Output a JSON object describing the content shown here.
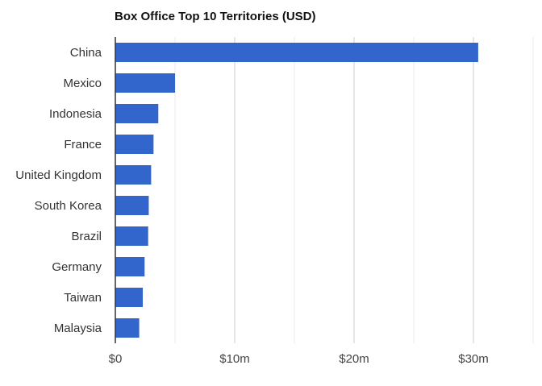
{
  "chart_data": {
    "type": "bar",
    "orientation": "horizontal",
    "title": "Box Office Top 10 Territories (USD)",
    "xlabel": "",
    "ylabel": "",
    "categories": [
      "China",
      "Mexico",
      "Indonesia",
      "France",
      "United Kingdom",
      "South Korea",
      "Brazil",
      "Germany",
      "Taiwan",
      "Malaysia"
    ],
    "values": [
      30.4,
      5.0,
      3.6,
      3.2,
      3.0,
      2.8,
      2.75,
      2.45,
      2.3,
      2.0
    ],
    "unit": "USD millions",
    "xlim": [
      0,
      35
    ],
    "ticks": [
      0,
      10,
      20,
      30
    ],
    "tick_labels": [
      "$0",
      "$10m",
      "$20m",
      "$30m"
    ],
    "grid": true,
    "legend": "none",
    "colors": {
      "bar": "#3366cc",
      "grid": "#cccccc",
      "minor_grid": "#ebebeb",
      "axis": "#333333"
    }
  }
}
